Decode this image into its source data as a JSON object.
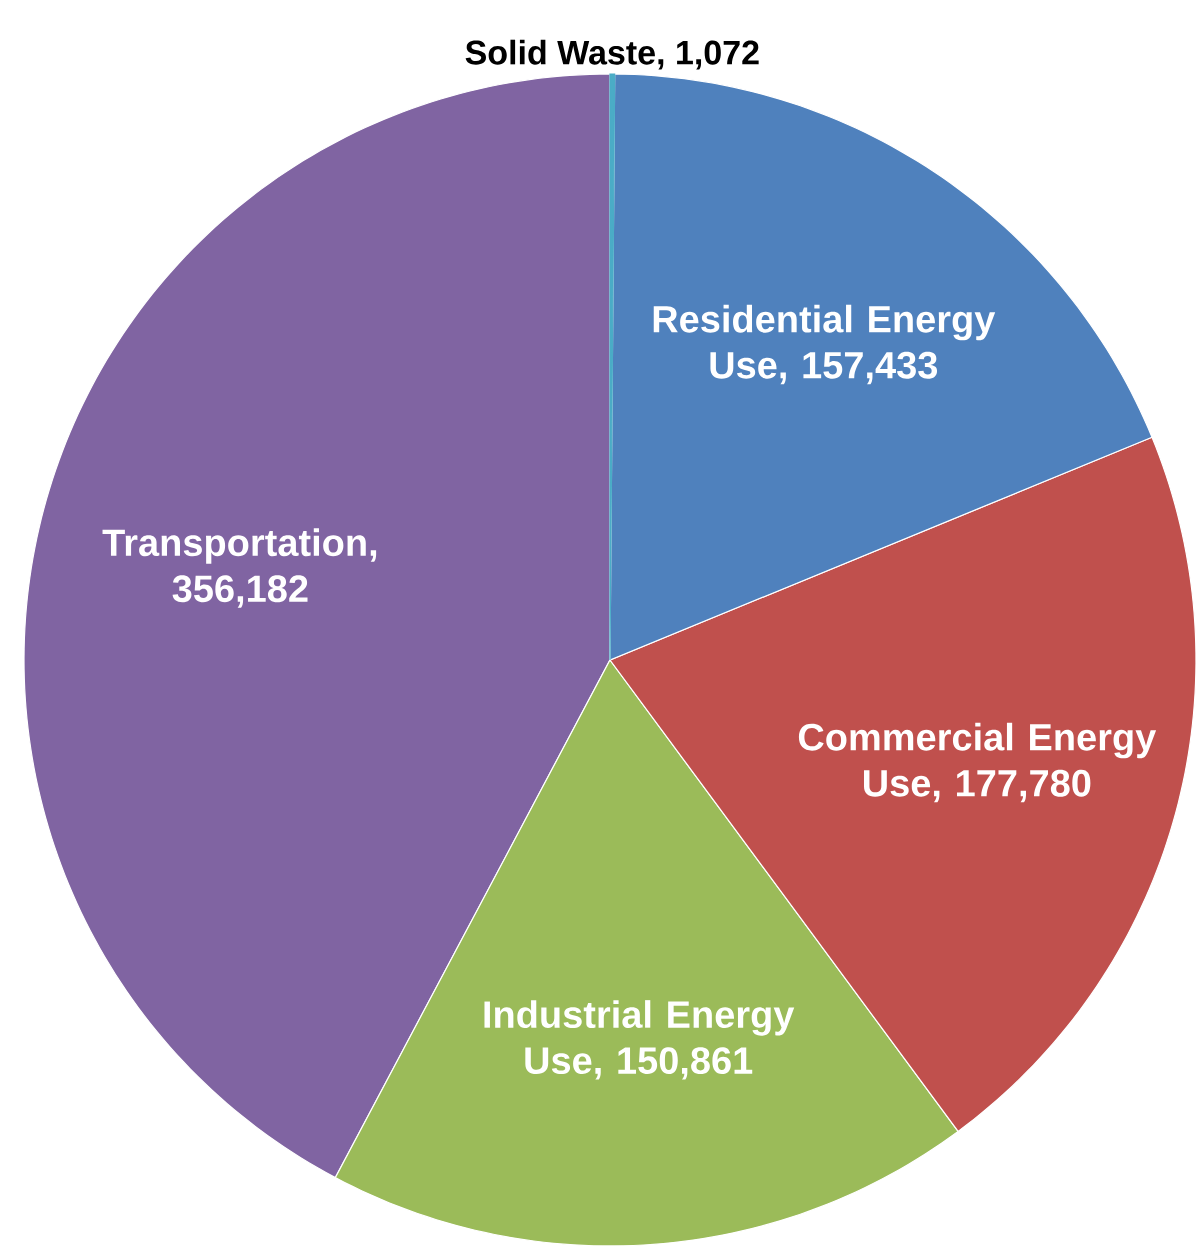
{
  "chart_data": {
    "type": "pie",
    "categories": [
      "Solid Waste, 1,072",
      "Residential Energy Use, 157,433",
      "Commercial Energy Use, 177,780",
      "Industrial Energy Use, 150,861",
      "Transportation, 356,182"
    ],
    "values": [
      1072,
      157433,
      177780,
      150861,
      356182
    ],
    "colors": [
      "#4bacc6",
      "#4f81bd",
      "#c0504d",
      "#9bbb59",
      "#8064a2"
    ]
  }
}
